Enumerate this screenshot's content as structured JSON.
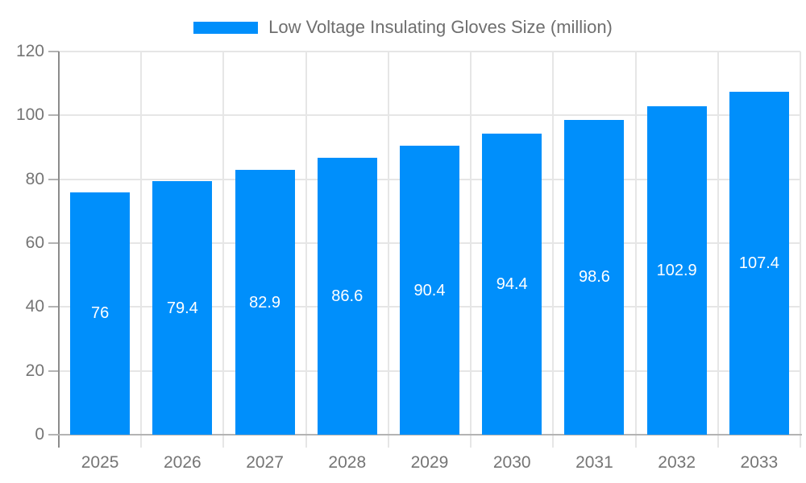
{
  "legend": {
    "label": "Low Voltage Insulating Gloves Size (million)"
  },
  "colors": {
    "bar": "#008ffb",
    "grid": "#e6e6e6",
    "x_axis_line": "#b3b3b3",
    "y_axis_line": "#8c8c8c",
    "tick_mark": "#b3b3b3",
    "axis_label_text": "#757575",
    "legend_text": "#6e6e6e",
    "bar_label_text": "#ffffff",
    "background": "#ffffff"
  },
  "chart_data": {
    "type": "bar",
    "title": "Low Voltage Insulating Gloves Size (million)",
    "categories": [
      "2025",
      "2026",
      "2027",
      "2028",
      "2029",
      "2030",
      "2031",
      "2032",
      "2033"
    ],
    "values": [
      76,
      79.4,
      82.9,
      86.6,
      90.4,
      94.4,
      98.6,
      102.9,
      107.4
    ],
    "value_labels": [
      "76",
      "79.4",
      "82.9",
      "86.6",
      "90.4",
      "94.4",
      "98.6",
      "102.9",
      "107.4"
    ],
    "xlabel": "",
    "ylabel": "",
    "ylim": [
      0,
      120
    ],
    "yticks": [
      0,
      20,
      40,
      60,
      80,
      100,
      120
    ],
    "grid": true,
    "legend_position": "top-center",
    "bar_labels_inside": true
  }
}
